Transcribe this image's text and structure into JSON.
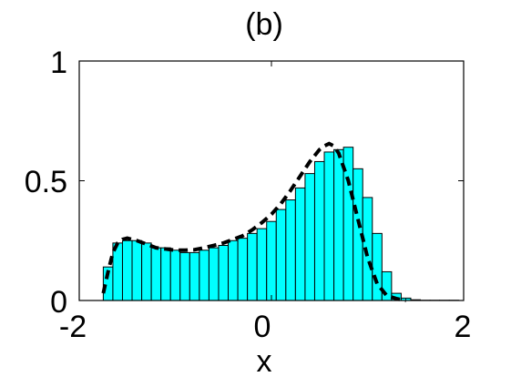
{
  "chart_data": {
    "type": "bar",
    "title": "(b)",
    "subtitle": "",
    "xlabel": "x",
    "ylabel": "",
    "xlim": [
      -2,
      2
    ],
    "ylim": [
      0,
      1
    ],
    "x_ticks": [
      -2,
      0,
      2
    ],
    "x_tick_labels": [
      "-2",
      "0",
      "2"
    ],
    "y_ticks": [
      0,
      0.5,
      1
    ],
    "y_tick_labels": [
      "0",
      "0.5",
      "1"
    ],
    "grid": false,
    "legend": "none",
    "bar_color": "#00ffff",
    "bar_edge_color": "#000000",
    "curve_color": "#000000",
    "curve_style": "dashed",
    "bin_width": 0.1,
    "series": [
      {
        "type": "histogram",
        "bin_centers": [
          -1.7,
          -1.6,
          -1.5,
          -1.4,
          -1.3,
          -1.2,
          -1.1,
          -1.0,
          -0.9,
          -0.8,
          -0.7,
          -0.6,
          -0.5,
          -0.4,
          -0.3,
          -0.2,
          -0.1,
          0.0,
          0.1,
          0.2,
          0.3,
          0.4,
          0.5,
          0.6,
          0.7,
          0.8,
          0.9,
          1.0,
          1.1,
          1.2,
          1.3,
          1.4,
          1.5,
          1.6,
          1.7,
          1.8,
          1.9
        ],
        "values": [
          0.14,
          0.24,
          0.25,
          0.25,
          0.24,
          0.22,
          0.22,
          0.21,
          0.2,
          0.2,
          0.21,
          0.22,
          0.23,
          0.25,
          0.26,
          0.28,
          0.3,
          0.33,
          0.38,
          0.42,
          0.47,
          0.53,
          0.58,
          0.62,
          0.63,
          0.64,
          0.55,
          0.43,
          0.28,
          0.12,
          0.03,
          0.01,
          0.003,
          0.001,
          0.001,
          0.001,
          0.001
        ]
      },
      {
        "type": "line",
        "x": [
          -1.75,
          -1.7,
          -1.65,
          -1.6,
          -1.55,
          -1.5,
          -1.45,
          -1.4,
          -1.3,
          -1.2,
          -1.1,
          -1.0,
          -0.9,
          -0.8,
          -0.7,
          -0.6,
          -0.5,
          -0.4,
          -0.3,
          -0.2,
          -0.1,
          0.0,
          0.1,
          0.2,
          0.3,
          0.4,
          0.5,
          0.55,
          0.6,
          0.65,
          0.7,
          0.8,
          0.9,
          1.0,
          1.1,
          1.2,
          1.3,
          1.35,
          1.4
        ],
        "y": [
          0.03,
          0.12,
          0.2,
          0.24,
          0.255,
          0.26,
          0.255,
          0.25,
          0.235,
          0.22,
          0.215,
          0.21,
          0.21,
          0.212,
          0.22,
          0.23,
          0.24,
          0.255,
          0.27,
          0.295,
          0.325,
          0.36,
          0.405,
          0.46,
          0.52,
          0.58,
          0.63,
          0.645,
          0.655,
          0.645,
          0.615,
          0.5,
          0.34,
          0.18,
          0.07,
          0.02,
          0.008,
          0.003,
          0.0
        ]
      }
    ]
  }
}
